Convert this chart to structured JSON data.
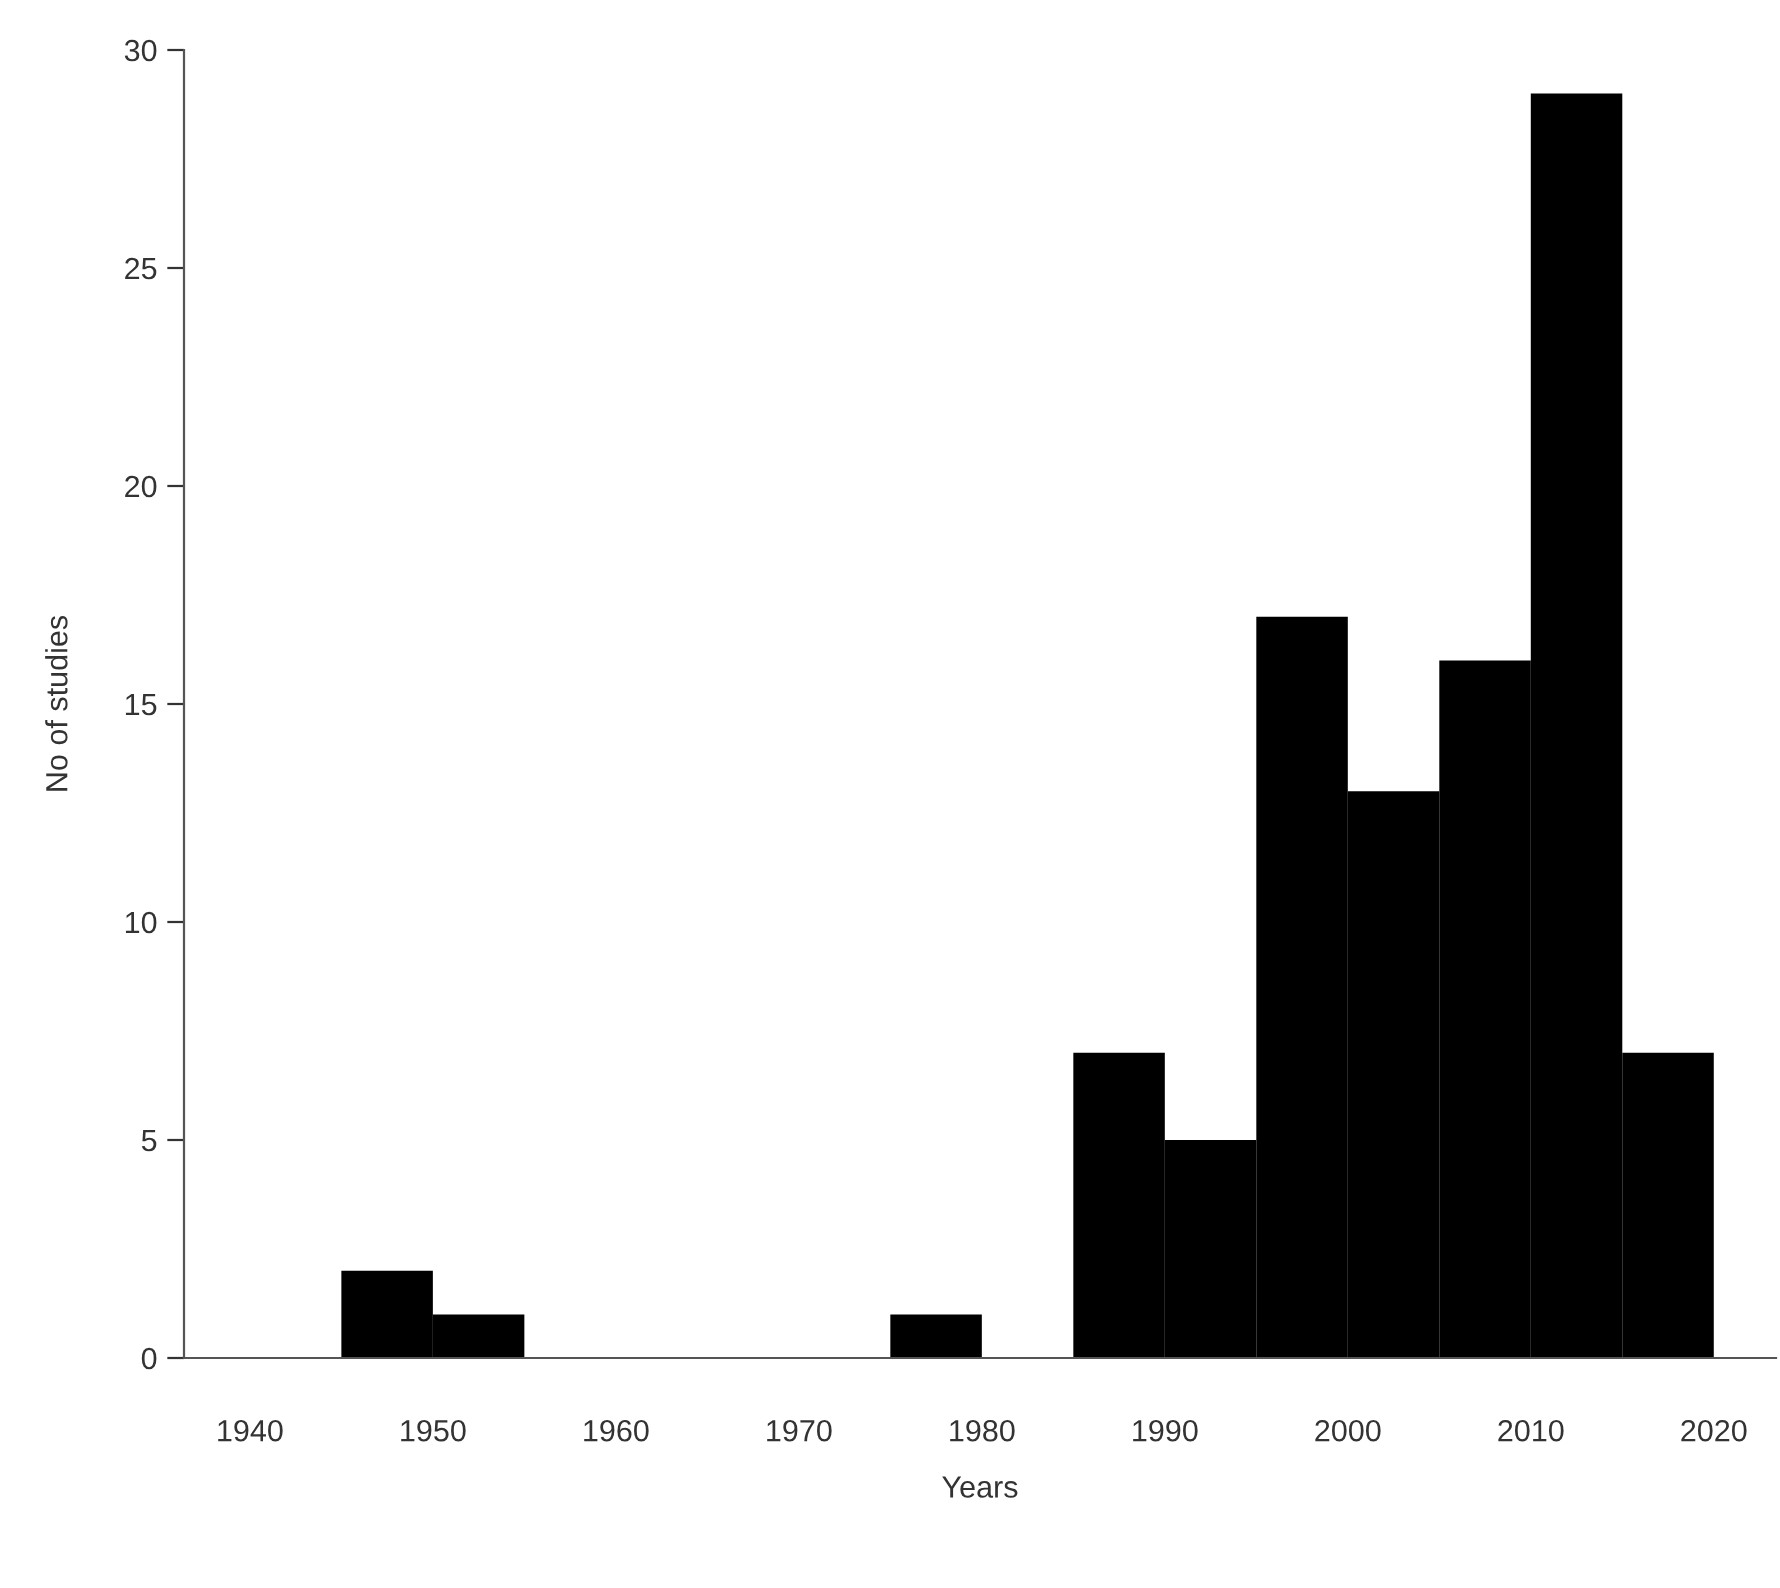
{
  "chart_data": {
    "type": "histogram",
    "xlabel": "Years",
    "ylabel": "No of studies",
    "bins": [
      1940,
      1945,
      1950,
      1955,
      1960,
      1965,
      1970,
      1975,
      1980,
      1985,
      1990,
      1995,
      2000,
      2005,
      2010,
      2015,
      2020
    ],
    "values": [
      0,
      2,
      1,
      0,
      0,
      0,
      0,
      1,
      0,
      7,
      5,
      17,
      13,
      16,
      29,
      7
    ],
    "color": "#000000",
    "xlim": [
      1936.4,
      2023.4
    ],
    "ylim": [
      0,
      30
    ],
    "xticks": [
      1940,
      1950,
      1960,
      1970,
      1980,
      1990,
      2000,
      2010,
      2020
    ],
    "yticks": [
      0,
      5,
      10,
      15,
      20,
      25,
      30
    ],
    "grid": false
  }
}
